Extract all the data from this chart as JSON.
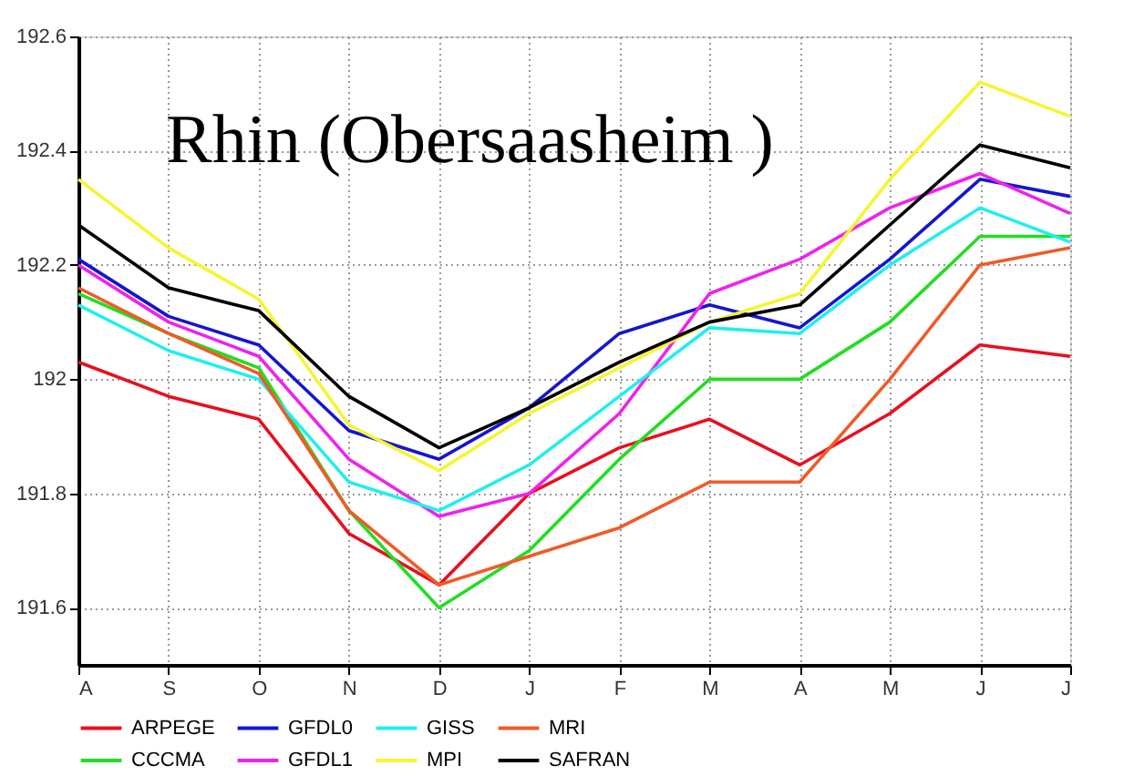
{
  "chart_data": {
    "type": "line",
    "title": "Rhin (Obersaasheim )",
    "categories": [
      "A",
      "S",
      "O",
      "N",
      "D",
      "J",
      "F",
      "M",
      "A",
      "M",
      "J",
      "J"
    ],
    "ylim": [
      191.5,
      192.6
    ],
    "yticks": [
      191.6,
      191.8,
      192,
      192.2,
      192.4,
      192.6
    ],
    "grid": true,
    "legend": "bottom",
    "marker": "none",
    "line_style": "solid",
    "series": [
      {
        "name": "ARPEGE",
        "color": "#e8101e",
        "values": [
          192.03,
          191.97,
          191.93,
          191.73,
          191.64,
          191.8,
          191.88,
          191.93,
          191.85,
          191.94,
          192.06,
          192.04
        ]
      },
      {
        "name": "CCCMA",
        "color": "#22dd22",
        "values": [
          192.15,
          192.08,
          192.02,
          191.77,
          191.6,
          191.7,
          191.86,
          192.0,
          192.0,
          192.1,
          192.25,
          192.25
        ]
      },
      {
        "name": "GFDL0",
        "color": "#1515d0",
        "values": [
          192.21,
          192.11,
          192.06,
          191.91,
          191.86,
          191.95,
          192.08,
          192.13,
          192.09,
          192.21,
          192.35,
          192.32
        ]
      },
      {
        "name": "GFDL1",
        "color": "#ee22ee",
        "values": [
          192.2,
          192.1,
          192.04,
          191.86,
          191.76,
          191.8,
          191.94,
          192.15,
          192.21,
          192.3,
          192.36,
          192.29
        ]
      },
      {
        "name": "GISS",
        "color": "#22eeee",
        "values": [
          192.13,
          192.05,
          192.0,
          191.82,
          191.77,
          191.85,
          191.97,
          192.09,
          192.08,
          192.2,
          192.3,
          192.24
        ]
      },
      {
        "name": "MPI",
        "color": "#f5f532",
        "values": [
          192.35,
          192.23,
          192.14,
          191.92,
          191.84,
          191.94,
          192.02,
          192.1,
          192.15,
          192.35,
          192.52,
          192.46
        ]
      },
      {
        "name": "MRI",
        "color": "#f05a28",
        "values": [
          192.16,
          192.08,
          192.01,
          191.77,
          191.64,
          191.69,
          191.74,
          191.82,
          191.82,
          192.0,
          192.2,
          192.23
        ]
      },
      {
        "name": "SAFRAN",
        "color": "#000000",
        "values": [
          192.27,
          192.16,
          192.12,
          191.97,
          191.88,
          191.95,
          192.03,
          192.1,
          192.13,
          192.27,
          192.41,
          192.37
        ]
      }
    ]
  }
}
